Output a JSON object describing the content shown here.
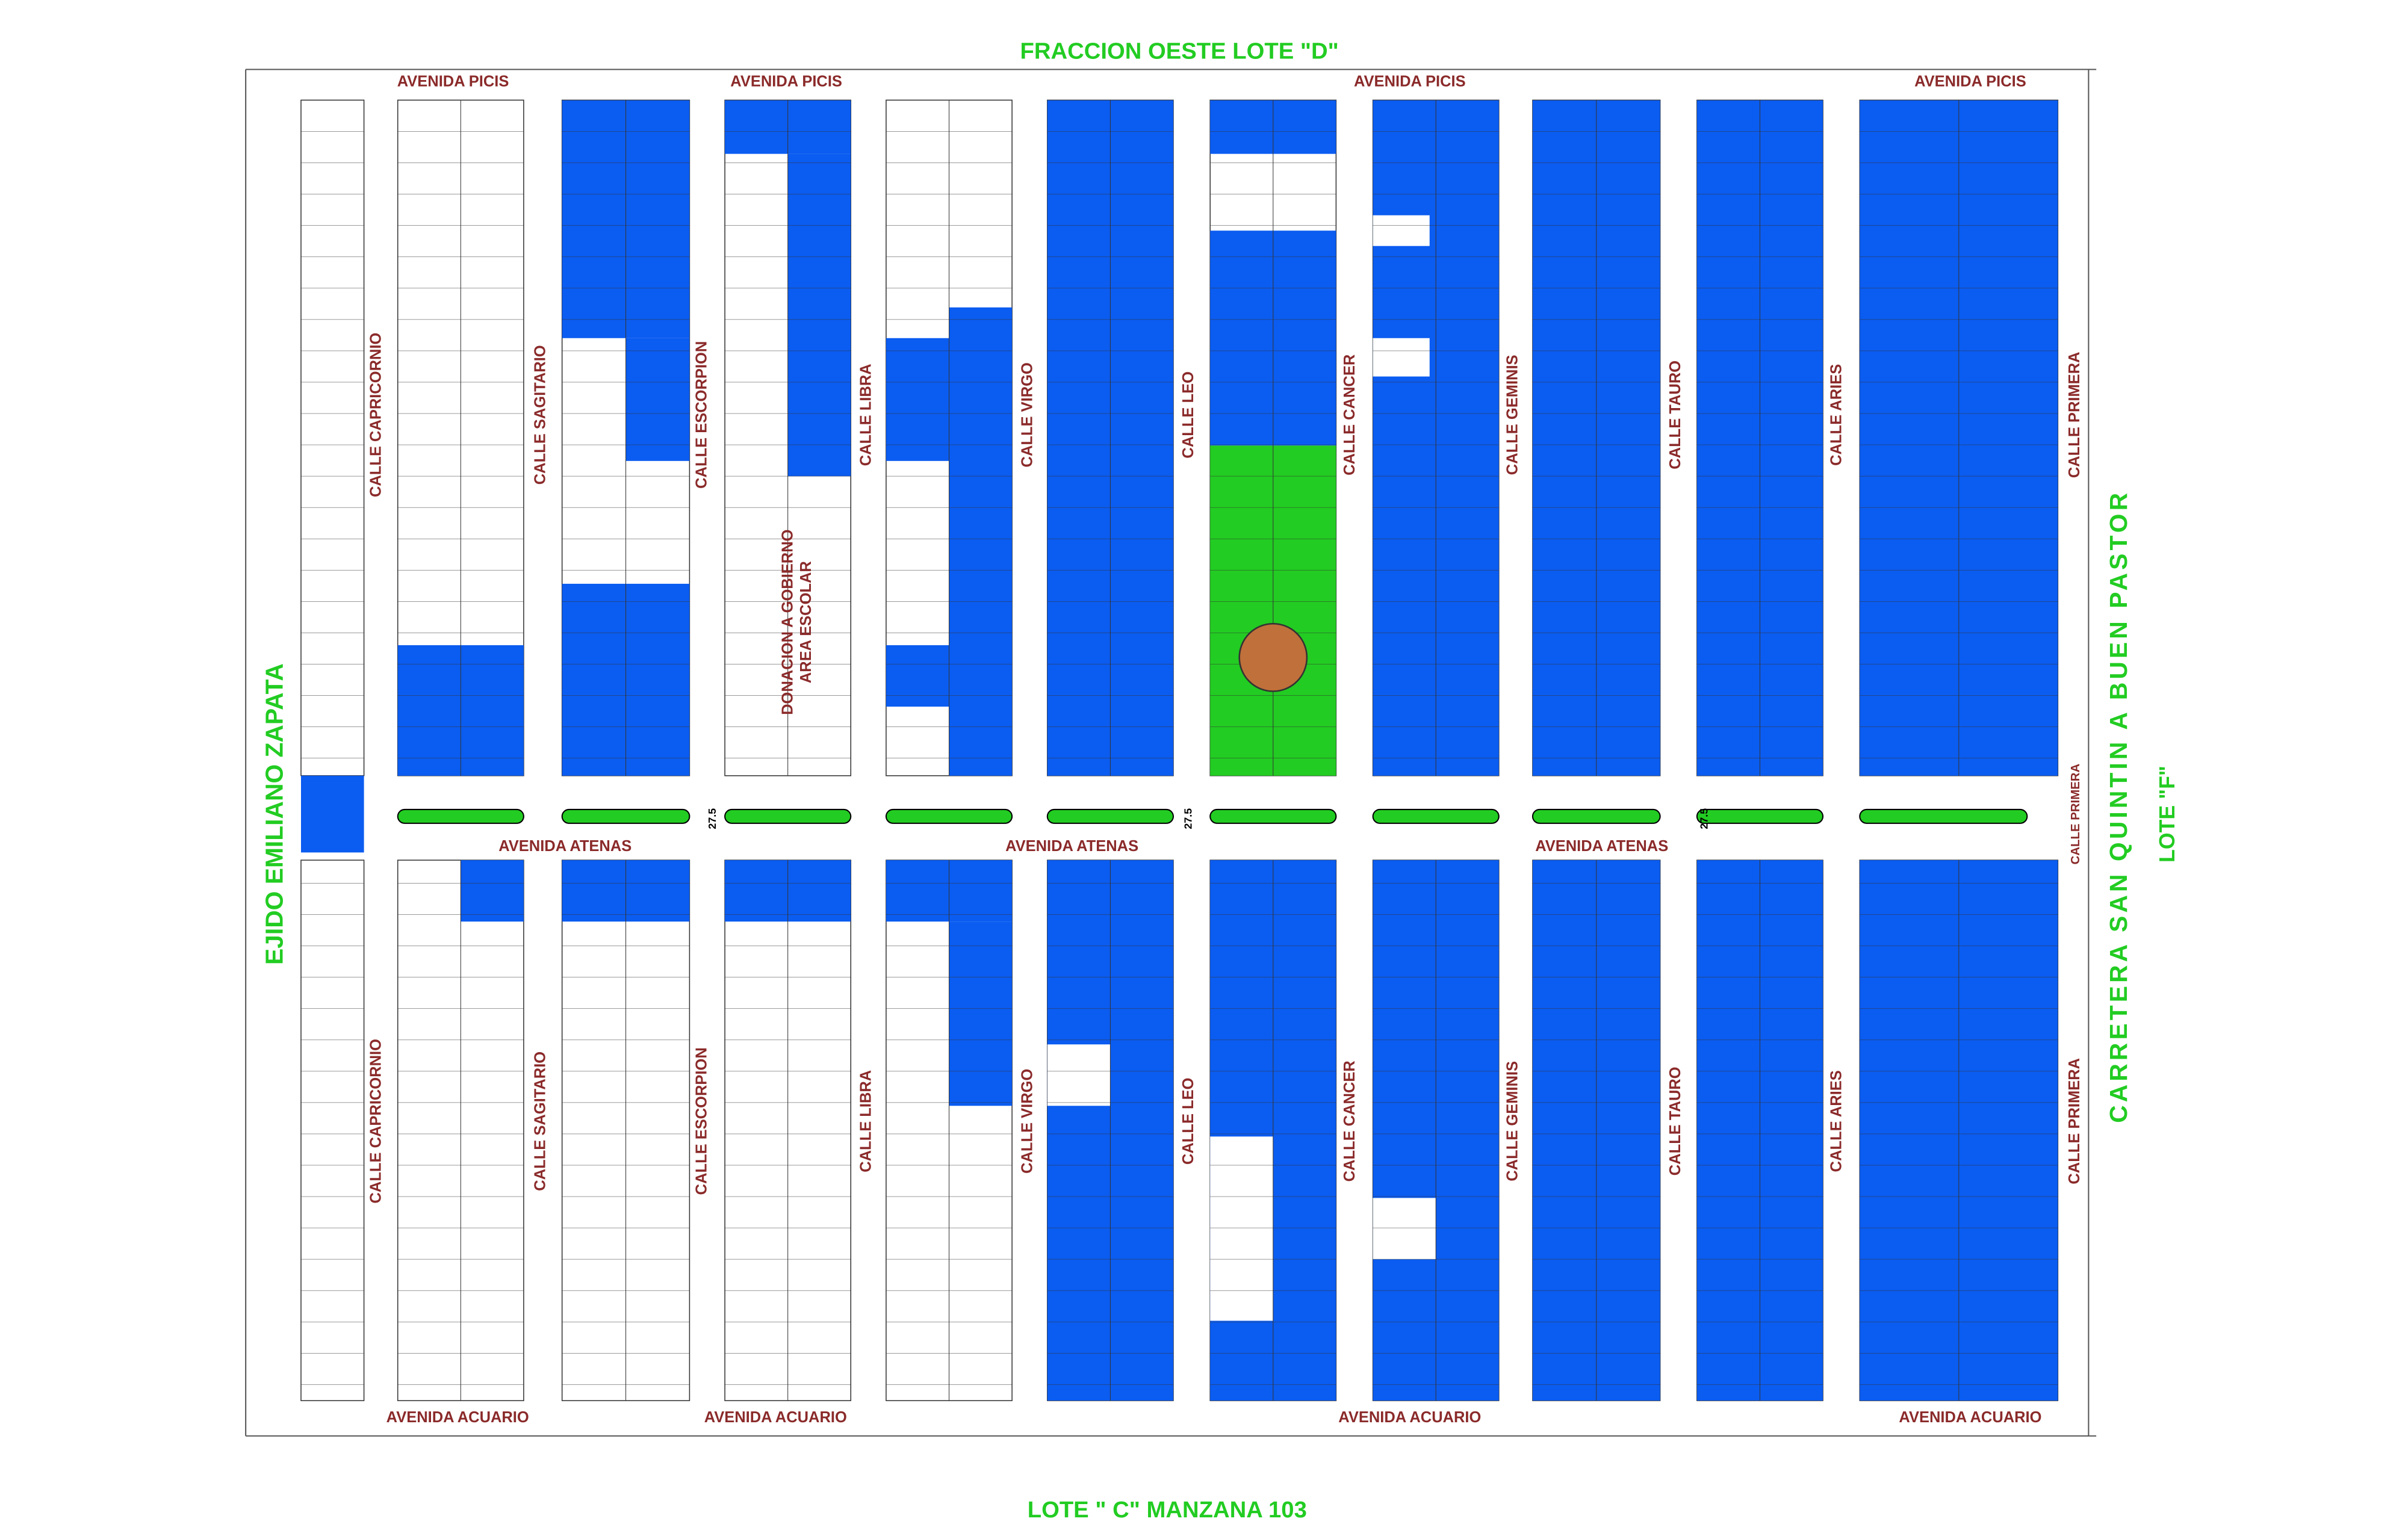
{
  "title": "FRACCION OESTE LOTE \"D\"",
  "bottom_label": "LOTE \" C\" MANZANA 103",
  "left_label": "EJIDO EMILIANO ZAPATA",
  "right_label": "CARRETERA  SAN  QUINTIN  A  BUEN  PASTOR",
  "right_lote": "LOTE \"F\"",
  "avenues": {
    "north": "AVENIDA PICIS",
    "middle": "AVENIDA ATENAS",
    "south": "AVENIDA ACUARIO"
  },
  "streets": [
    "CALLE CAPRICORNIO",
    "CALLE  SAGITARIO",
    "CALLE ESCORPION",
    "CALLE  LIBRA",
    "CALLE VIRGO",
    "CALLE LEO",
    "CALLE CANCER",
    "CALLE GEMINIS",
    "CALLE TAURO",
    "CALLE  ARIES",
    "CALLE PRIMERA"
  ],
  "school": [
    "DONACION A GOBIERNO",
    "AREA ESCOLAR"
  ],
  "road_width": "27.5"
}
